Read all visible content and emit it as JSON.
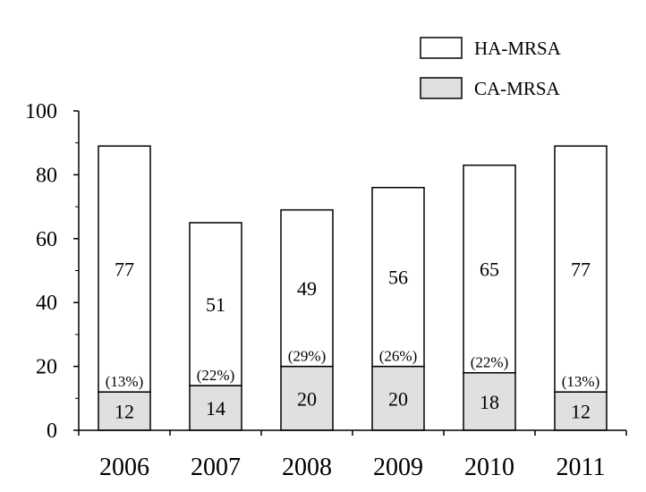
{
  "chart_data": {
    "type": "bar",
    "stacked": true,
    "categories": [
      "2006",
      "2007",
      "2008",
      "2009",
      "2010",
      "2011"
    ],
    "series": [
      {
        "name": "CA-MRSA",
        "values": [
          12,
          14,
          20,
          20,
          18,
          12
        ],
        "color": "#e0e0e0"
      },
      {
        "name": "HA-MRSA",
        "values": [
          77,
          51,
          49,
          56,
          65,
          77
        ],
        "color": "#ffffff"
      }
    ],
    "annotations": [
      "(13%)",
      "(22%)",
      "(29%)",
      "(26%)",
      "(22%)",
      "(13%)"
    ],
    "ylim": [
      0,
      100
    ],
    "yticks": [
      0,
      20,
      40,
      60,
      80,
      100
    ],
    "title": "",
    "xlabel": "",
    "ylabel": "",
    "legend_position": "top-right",
    "grid": false
  }
}
